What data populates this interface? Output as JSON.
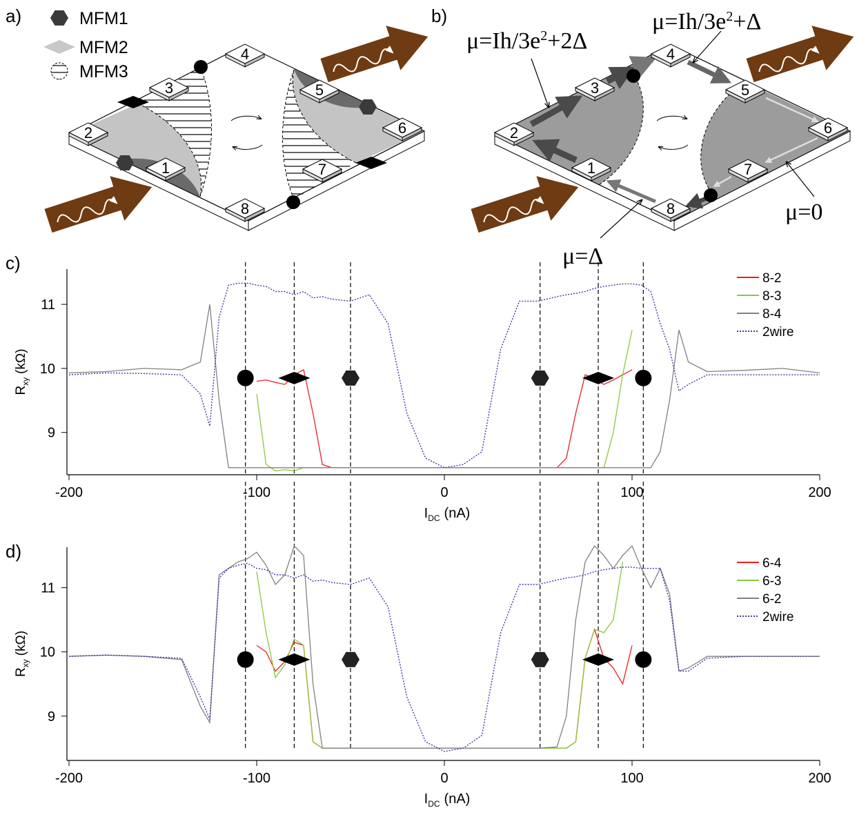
{
  "panel_a": {
    "label": "a)",
    "legend": [
      "MFM1",
      "MFM2",
      "MFM3"
    ],
    "contacts": [
      "1",
      "2",
      "3",
      "4",
      "5",
      "6",
      "7",
      "8"
    ]
  },
  "panel_b": {
    "label": "b)",
    "contacts": [
      "1",
      "2",
      "3",
      "4",
      "5",
      "6",
      "7",
      "8"
    ],
    "annotations": [
      {
        "pre": "μ=Ih/3e",
        "sup": "2",
        "post": "+2Δ"
      },
      {
        "pre": "μ=Ih/3e",
        "sup": "2",
        "post": "+Δ"
      },
      {
        "pre": "μ=0"
      },
      {
        "pre": "μ=Δ"
      }
    ]
  },
  "chart_data": [
    {
      "type": "line",
      "panel_label": "c)",
      "xlabel": "I",
      "xlabel_sub": "DC",
      "xlabel_unit": "(nA)",
      "ylabel": "R",
      "ylabel_sub": "xy",
      "ylabel_unit": "(kΩ)",
      "xlim": [
        -200,
        200
      ],
      "xticks": [
        -200,
        -100,
        0,
        100,
        200
      ],
      "ylim": [
        8.34,
        11.55
      ],
      "yticks": [
        9,
        10,
        11
      ],
      "x": [
        -200,
        -180,
        -160,
        -140,
        -130,
        -125,
        -120,
        -115,
        -110,
        -105,
        -100,
        -95,
        -90,
        -85,
        -80,
        -75,
        -70,
        -65,
        -60,
        -50,
        -40,
        -30,
        -20,
        -10,
        0,
        10,
        20,
        30,
        40,
        50,
        60,
        65,
        70,
        75,
        80,
        85,
        90,
        95,
        100,
        105,
        110,
        115,
        120,
        125,
        130,
        140,
        160,
        180,
        200
      ],
      "series": [
        {
          "name": "8-2",
          "color": "#e8201e",
          "style": "solid",
          "values": [
            null,
            null,
            null,
            null,
            null,
            null,
            null,
            null,
            null,
            null,
            9.8,
            9.82,
            9.78,
            9.75,
            9.9,
            9.98,
            9.3,
            8.5,
            8.45,
            8.45,
            8.45,
            8.45,
            8.45,
            8.45,
            8.45,
            8.45,
            8.45,
            8.45,
            8.45,
            8.45,
            8.45,
            8.6,
            9.3,
            9.9,
            9.85,
            9.75,
            9.82,
            9.9,
            9.98,
            null,
            null,
            null,
            null,
            null,
            null,
            null,
            null,
            null,
            null
          ]
        },
        {
          "name": "8-3",
          "color": "#8cc63e",
          "style": "solid",
          "values": [
            null,
            null,
            null,
            null,
            null,
            null,
            null,
            null,
            null,
            null,
            9.6,
            8.5,
            8.4,
            8.42,
            8.4,
            8.45,
            8.45,
            8.45,
            8.45,
            8.45,
            8.45,
            8.45,
            8.45,
            8.45,
            8.45,
            8.45,
            8.45,
            8.45,
            8.45,
            8.45,
            8.45,
            8.45,
            8.45,
            8.45,
            8.45,
            8.45,
            9.0,
            9.9,
            10.6,
            null,
            null,
            null,
            null,
            null,
            null,
            null,
            null,
            null,
            null
          ]
        },
        {
          "name": "8-4",
          "color": "#808080",
          "style": "solid",
          "values": [
            9.93,
            9.95,
            10.0,
            9.98,
            10.1,
            11.0,
            9.5,
            8.45,
            8.45,
            8.45,
            8.45,
            8.45,
            8.45,
            8.45,
            8.45,
            8.45,
            8.45,
            8.45,
            8.45,
            8.45,
            8.45,
            8.45,
            8.45,
            8.45,
            8.45,
            8.45,
            8.45,
            8.45,
            8.45,
            8.45,
            8.45,
            8.45,
            8.45,
            8.45,
            8.45,
            8.45,
            8.45,
            8.45,
            8.45,
            8.45,
            8.45,
            8.7,
            9.5,
            10.6,
            10.1,
            9.95,
            9.97,
            10.0,
            9.93
          ]
        },
        {
          "name": "2wire",
          "color": "#3a3aa6",
          "style": "dotted",
          "values": [
            9.9,
            9.93,
            9.92,
            9.9,
            9.6,
            9.1,
            10.8,
            11.3,
            11.33,
            11.33,
            11.3,
            11.28,
            11.2,
            11.2,
            11.15,
            11.2,
            11.1,
            11.12,
            11.08,
            11.05,
            11.15,
            10.7,
            9.3,
            8.6,
            8.45,
            8.5,
            8.7,
            10.3,
            11.05,
            11.05,
            11.12,
            11.15,
            11.17,
            11.2,
            11.25,
            11.28,
            11.3,
            11.32,
            11.32,
            11.3,
            11.2,
            10.7,
            10.3,
            9.65,
            9.75,
            9.9,
            9.9,
            9.9,
            9.9
          ]
        }
      ],
      "markers": [
        {
          "x": -106,
          "y": 9.85,
          "shape": "circle"
        },
        {
          "x": -80,
          "y": 9.85,
          "shape": "diamond"
        },
        {
          "x": -50,
          "y": 9.85,
          "shape": "hexagon"
        },
        {
          "x": 51,
          "y": 9.85,
          "shape": "hexagon"
        },
        {
          "x": 82,
          "y": 9.85,
          "shape": "diamond"
        },
        {
          "x": 106,
          "y": 9.85,
          "shape": "circle"
        }
      ],
      "legend": "top-right"
    },
    {
      "type": "line",
      "panel_label": "d)",
      "xlabel": "I",
      "xlabel_sub": "DC",
      "xlabel_unit": "(nA)",
      "ylabel": "R",
      "ylabel_sub": "xy",
      "ylabel_unit": "(kΩ)",
      "xlim": [
        -200,
        200
      ],
      "xticks": [
        -200,
        -100,
        0,
        100,
        200
      ],
      "ylim": [
        8.31,
        11.63
      ],
      "yticks": [
        9,
        10,
        11
      ],
      "x": [
        -200,
        -180,
        -160,
        -140,
        -130,
        -125,
        -120,
        -115,
        -110,
        -105,
        -100,
        -95,
        -90,
        -85,
        -80,
        -75,
        -70,
        -65,
        -60,
        -50,
        -40,
        -30,
        -20,
        -10,
        0,
        10,
        20,
        30,
        40,
        50,
        60,
        65,
        70,
        75,
        80,
        85,
        90,
        95,
        100,
        105,
        110,
        115,
        120,
        125,
        130,
        140,
        160,
        180,
        200
      ],
      "series": [
        {
          "name": "6-4",
          "color": "#e8201e",
          "style": "solid",
          "values": [
            null,
            null,
            null,
            null,
            null,
            null,
            null,
            null,
            null,
            null,
            10.1,
            10.0,
            9.7,
            9.85,
            10.15,
            10.1,
            8.6,
            8.5,
            8.5,
            8.5,
            8.5,
            8.5,
            8.5,
            8.5,
            8.5,
            8.5,
            8.5,
            8.5,
            8.5,
            8.5,
            8.5,
            8.5,
            8.6,
            9.9,
            10.35,
            9.9,
            9.75,
            9.5,
            10.1,
            null,
            null,
            null,
            null,
            null,
            null,
            null,
            null,
            null,
            null
          ]
        },
        {
          "name": "6-3",
          "color": "#8cc63e",
          "style": "solid",
          "values": [
            null,
            null,
            null,
            null,
            null,
            null,
            null,
            null,
            null,
            null,
            11.25,
            10.3,
            9.6,
            9.8,
            10.2,
            10.1,
            8.6,
            8.5,
            8.5,
            8.5,
            8.5,
            8.5,
            8.5,
            8.5,
            8.5,
            8.5,
            8.5,
            8.5,
            8.5,
            8.5,
            8.5,
            8.5,
            8.6,
            9.9,
            10.35,
            10.3,
            10.5,
            11.4,
            null,
            null,
            null,
            null,
            null,
            null,
            null,
            null,
            null,
            null,
            null
          ]
        },
        {
          "name": "6-2",
          "color": "#808080",
          "style": "solid",
          "values": [
            9.93,
            9.95,
            9.93,
            9.88,
            9.15,
            8.9,
            11.2,
            11.3,
            11.4,
            11.45,
            11.55,
            11.35,
            11.05,
            11.2,
            11.65,
            11.5,
            9.5,
            8.5,
            8.5,
            8.5,
            8.5,
            8.5,
            8.5,
            8.5,
            8.5,
            8.5,
            8.5,
            8.5,
            8.5,
            8.5,
            8.52,
            9.0,
            10.5,
            11.4,
            11.65,
            11.5,
            11.3,
            11.5,
            11.65,
            11.3,
            11.0,
            11.3,
            10.9,
            9.7,
            9.75,
            9.93,
            9.93,
            9.93,
            9.93
          ]
        },
        {
          "name": "2wire",
          "color": "#3a3aa6",
          "style": "dotted",
          "values": [
            9.93,
            9.95,
            9.93,
            9.9,
            9.3,
            8.95,
            11.15,
            11.3,
            11.35,
            11.38,
            11.3,
            11.28,
            11.2,
            11.2,
            11.15,
            11.2,
            11.1,
            11.12,
            11.08,
            11.05,
            11.15,
            10.7,
            9.3,
            8.6,
            8.45,
            8.5,
            8.7,
            10.3,
            11.05,
            11.05,
            11.12,
            11.15,
            11.17,
            11.2,
            11.25,
            11.28,
            11.3,
            11.32,
            11.32,
            11.3,
            11.3,
            11.3,
            10.8,
            9.7,
            9.7,
            9.9,
            9.93,
            9.93,
            9.93
          ]
        }
      ],
      "markers": [
        {
          "x": -106,
          "y": 9.88,
          "shape": "circle"
        },
        {
          "x": -80,
          "y": 9.88,
          "shape": "diamond"
        },
        {
          "x": -50,
          "y": 9.88,
          "shape": "hexagon"
        },
        {
          "x": 51,
          "y": 9.88,
          "shape": "hexagon"
        },
        {
          "x": 82,
          "y": 9.88,
          "shape": "diamond"
        },
        {
          "x": 106,
          "y": 9.88,
          "shape": "circle"
        }
      ],
      "legend": "top-right"
    }
  ]
}
